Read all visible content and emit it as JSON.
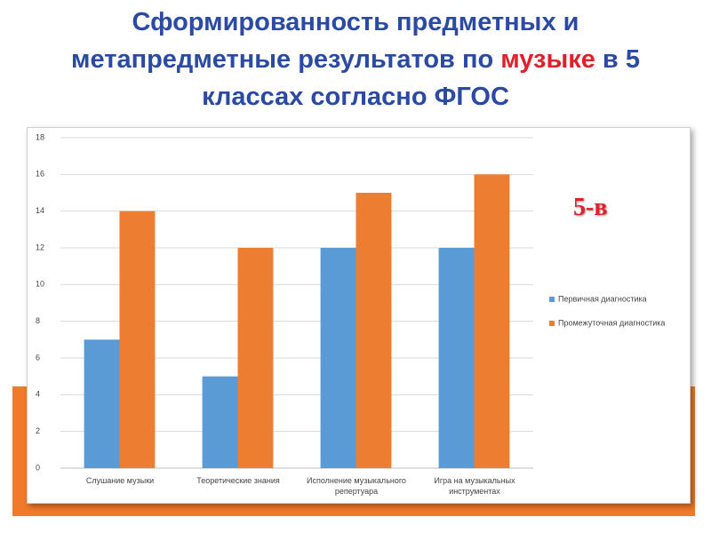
{
  "chart_data": {
    "type": "bar",
    "title": [
      [
        {
          "text": "Сформированность предметных и",
          "color": "#2a4aa3"
        }
      ],
      [
        {
          "text": "метапредметные результатов  по ",
          "color": "#2a4aa3"
        },
        {
          "text": "музыке",
          "color": "#e0202a"
        },
        {
          "text": " в 5",
          "color": "#2a4aa3"
        }
      ],
      [
        {
          "text": "классах согласно ФГОС",
          "color": "#2a4aa3"
        }
      ]
    ],
    "annotation": "5-в",
    "categories": [
      "Слушание музыки",
      "Теоретические знания",
      "Исполнение музыкального репертуара",
      "Игра на музыкальных инструментах"
    ],
    "series": [
      {
        "name": "Первичная диагностика",
        "color": "#5b9bd5",
        "values": [
          7,
          5,
          12,
          12
        ]
      },
      {
        "name": "Промежуточная диагностика",
        "color": "#ed7d31",
        "values": [
          14,
          12,
          15,
          16
        ]
      }
    ],
    "ylim": [
      0,
      18
    ],
    "yticks": [
      0,
      2,
      4,
      6,
      8,
      10,
      12,
      14,
      16,
      18
    ],
    "grid": true,
    "legend": "right"
  }
}
